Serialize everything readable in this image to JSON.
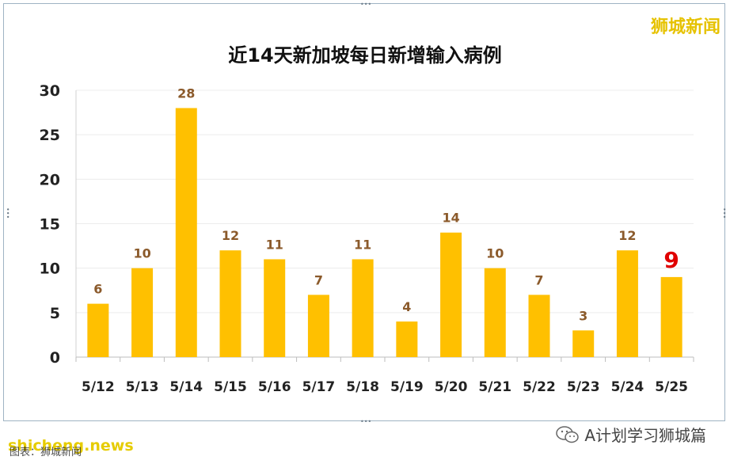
{
  "watermark_top": "狮城新闻",
  "footer_left": "shicheng.news",
  "footer_source": "图表：狮城新闻",
  "footer_right": "A计划学习狮城篇",
  "colors": {
    "bar": "#FFC000",
    "label": "#8B5A2B",
    "highlight": "#E00000"
  },
  "chart_data": {
    "type": "bar",
    "title": "近14天新加坡每日新增输入病例",
    "xlabel": "",
    "ylabel": "",
    "categories": [
      "5/12",
      "5/13",
      "5/14",
      "5/15",
      "5/16",
      "5/17",
      "5/18",
      "5/19",
      "5/20",
      "5/21",
      "5/22",
      "5/23",
      "5/24",
      "5/25"
    ],
    "values": [
      6,
      10,
      28,
      12,
      11,
      7,
      11,
      4,
      14,
      10,
      7,
      3,
      12,
      9
    ],
    "ylim": [
      0,
      30
    ],
    "yticks": [
      0,
      5,
      10,
      15,
      20,
      25,
      30
    ],
    "grid": true,
    "highlight_last": true
  }
}
